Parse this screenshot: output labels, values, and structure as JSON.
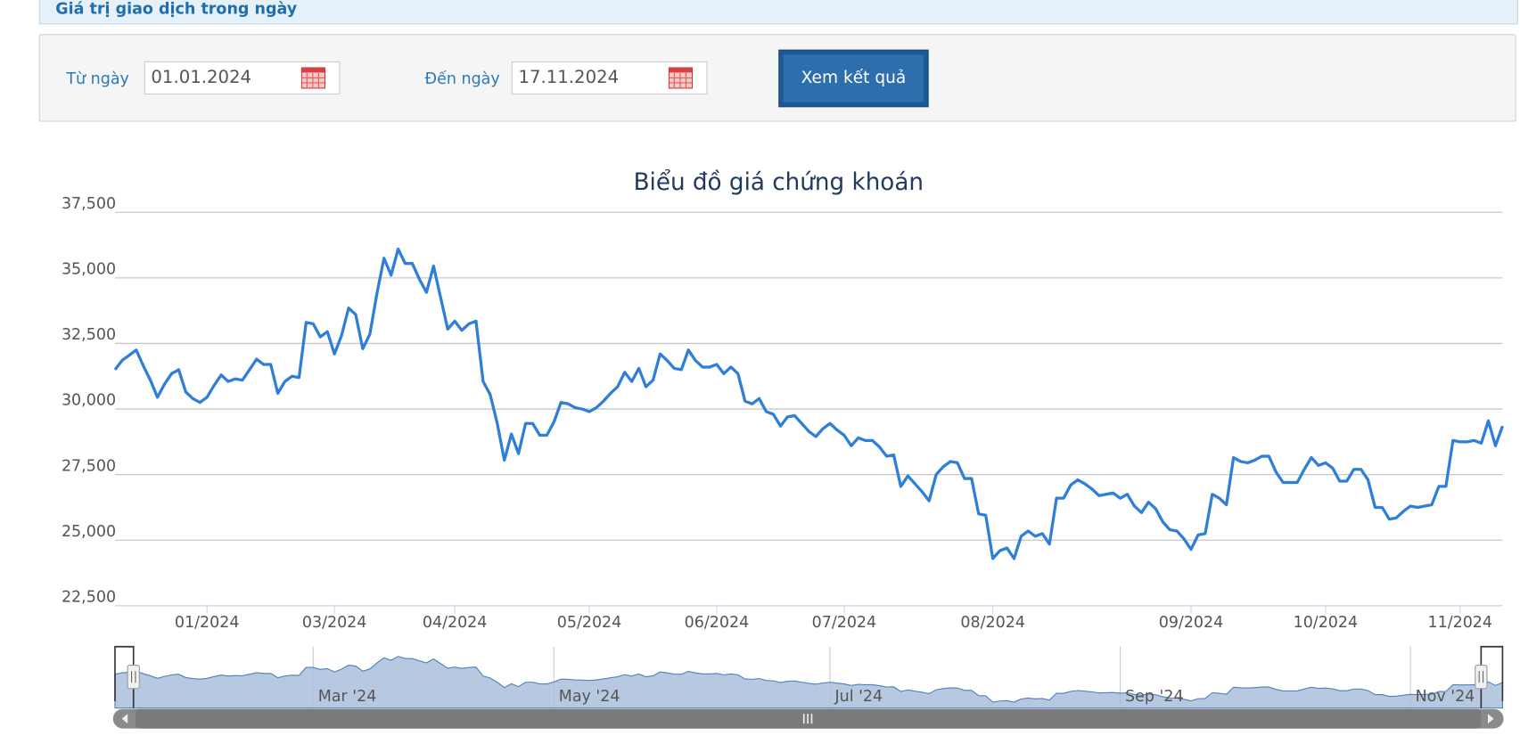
{
  "header": {
    "title": "Giá trị giao dịch trong ngày"
  },
  "form": {
    "from_label": "Từ ngày",
    "from_value": "01.01.2024",
    "to_label": "Đến ngày",
    "to_value": "17.11.2024",
    "button": "Xem kết quả"
  },
  "chart_data": {
    "type": "line",
    "title": "Biểu đồ giá chứng khoán",
    "series": [
      {
        "color": "#2f7ed8",
        "values": [
          31500,
          31850,
          32050,
          32250,
          31650,
          31100,
          30450,
          30950,
          31350,
          31500,
          30650,
          30400,
          30250,
          30450,
          30900,
          31300,
          31050,
          31150,
          31100,
          31500,
          31900,
          31700,
          31700,
          30600,
          31050,
          31250,
          31200,
          33300,
          33250,
          32750,
          32950,
          32100,
          32800,
          33850,
          33600,
          32300,
          32850,
          34400,
          35750,
          35100,
          36100,
          35550,
          35550,
          34950,
          34450,
          35450,
          34250,
          33050,
          33350,
          33000,
          33250,
          33350,
          31050,
          30550,
          29450,
          28050,
          29050,
          28300,
          29450,
          29450,
          29000,
          29000,
          29500,
          30250,
          30200,
          30050,
          30000,
          29900,
          30050,
          30300,
          30600,
          30850,
          31400,
          31050,
          31550,
          30850,
          31100,
          32100,
          31850,
          31550,
          31500,
          32250,
          31850,
          31600,
          31600,
          31700,
          31350,
          31600,
          31350,
          30300,
          30200,
          30400,
          29900,
          29800,
          29350,
          29700,
          29750,
          29450,
          29150,
          28950,
          29250,
          29450,
          29200,
          29000,
          28600,
          28900,
          28800,
          28800,
          28550,
          28200,
          28250,
          27050,
          27450,
          27150,
          26850,
          26500,
          27500,
          27800,
          28000,
          27950,
          27350,
          27350,
          26000,
          25950,
          24300,
          24600,
          24700,
          24300,
          25150,
          25350,
          25150,
          25250,
          24850,
          26600,
          26600,
          27100,
          27300,
          27150,
          26950,
          26700,
          26750,
          26800,
          26600,
          26750,
          26300,
          26050,
          26450,
          26200,
          25700,
          25400,
          25350,
          25050,
          24650,
          25200,
          25250,
          26750,
          26600,
          26350,
          28150,
          28000,
          27950,
          28050,
          28200,
          28200,
          27600,
          27200,
          27200,
          27200,
          27700,
          28150,
          27850,
          27950,
          27750,
          27250,
          27250,
          27700,
          27700,
          27300,
          26250,
          26250,
          25800,
          25850,
          26100,
          26300,
          26250,
          26300,
          26350,
          27050,
          27050,
          28800,
          28750,
          28750,
          28800,
          28700,
          29550,
          28600,
          29350
        ]
      }
    ],
    "xlim": [
      0,
      196
    ],
    "xticks": [
      {
        "value": 13,
        "label": "01/2024"
      },
      {
        "value": 31,
        "label": "03/2024"
      },
      {
        "value": 48,
        "label": "04/2024"
      },
      {
        "value": 67,
        "label": "05/2024"
      },
      {
        "value": 85,
        "label": "06/2024"
      },
      {
        "value": 103,
        "label": "07/2024"
      },
      {
        "value": 124,
        "label": "08/2024"
      },
      {
        "value": 152,
        "label": "09/2024"
      },
      {
        "value": 171,
        "label": "10/2024"
      },
      {
        "value": 190,
        "label": "11/2024"
      }
    ],
    "ylim": [
      22500,
      37500
    ],
    "yticks": [
      {
        "value": 22500,
        "label": "22,500"
      },
      {
        "value": 25000,
        "label": "25,000"
      },
      {
        "value": 27500,
        "label": "27,500"
      },
      {
        "value": 30000,
        "label": "30,000"
      },
      {
        "value": 32500,
        "label": "32,500"
      },
      {
        "value": 35000,
        "label": "35,000"
      },
      {
        "value": 37500,
        "label": "37,500"
      }
    ],
    "grid": true,
    "navigator": {
      "xticks": [
        {
          "value": 28,
          "label": "Mar '24"
        },
        {
          "value": 62,
          "label": "May '24"
        },
        {
          "value": 101,
          "label": "Jul '24"
        },
        {
          "value": 142,
          "label": "Sep '24"
        },
        {
          "value": 183,
          "label": "Nov '24"
        }
      ]
    }
  }
}
